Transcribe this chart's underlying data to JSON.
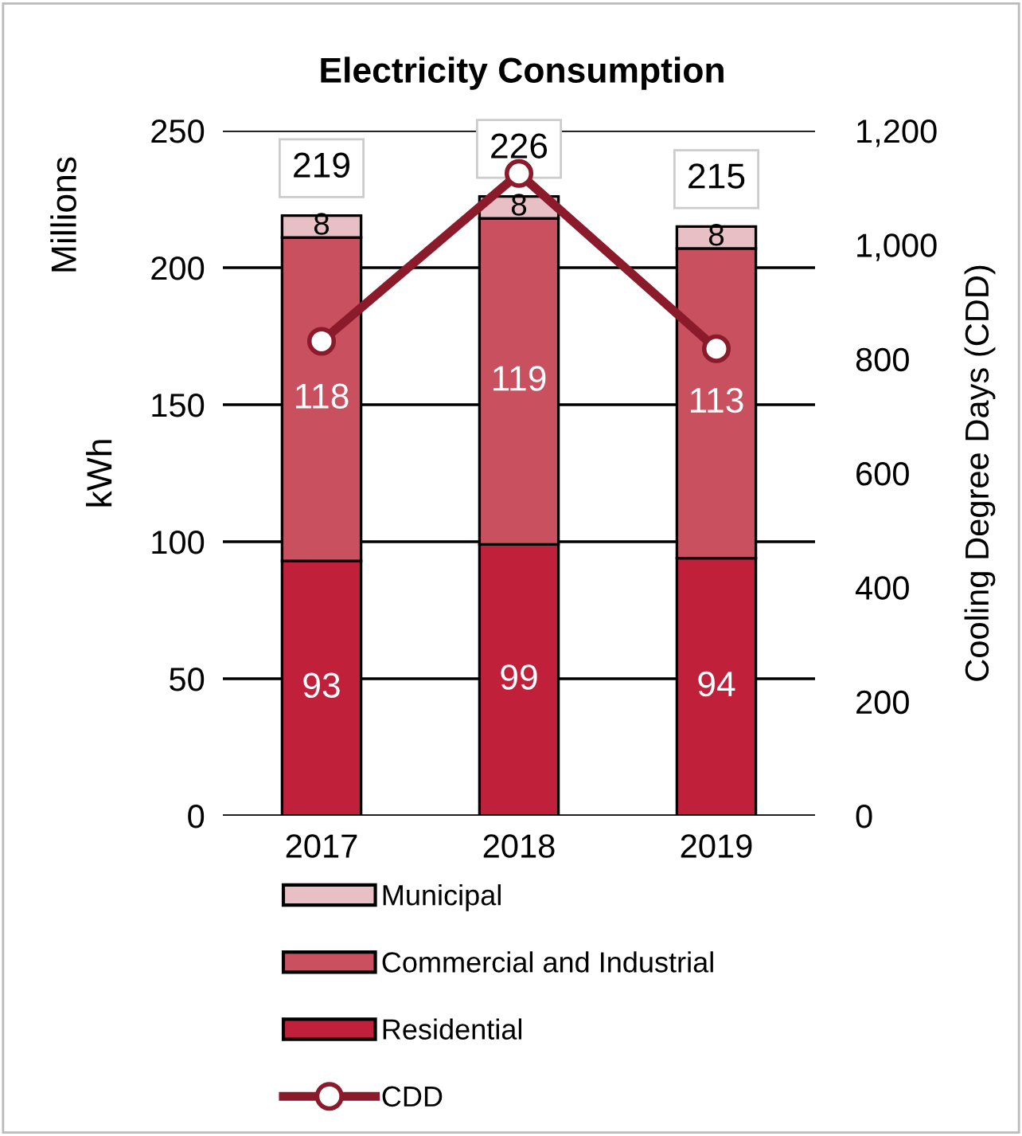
{
  "chart_data": {
    "type": "bar",
    "title": "Electricity Consumption",
    "ylabel": "kWh",
    "y2label": "Cooling Degree Days (CDD)",
    "annotations": [
      "Millions"
    ],
    "categories": [
      "2017",
      "2018",
      "2019"
    ],
    "stacked": true,
    "totals": [
      "219",
      "226",
      "215"
    ],
    "series": [
      {
        "name": "Residential",
        "color": "#c0203a",
        "values": [
          93,
          99,
          94
        ],
        "value_labels": [
          "93",
          "99",
          "94"
        ]
      },
      {
        "name": "Commercial and Industrial",
        "color": "#c9505e",
        "values": [
          118,
          119,
          113
        ],
        "value_labels": [
          "118",
          "119",
          "113"
        ]
      },
      {
        "name": "Municipal",
        "color": "#e8bfc4",
        "values": [
          8,
          8,
          8
        ],
        "value_labels": [
          "8",
          "8",
          "8"
        ]
      },
      {
        "name": "CDD",
        "type": "line",
        "axis": "y2",
        "color": "#8b1a2b",
        "marker": "circle",
        "values": [
          831,
          1125,
          818
        ]
      }
    ],
    "ylim": [
      0,
      250
    ],
    "yticks": [
      0,
      50,
      100,
      150,
      200,
      250
    ],
    "y2lim": [
      0,
      1200
    ],
    "y2ticks": [
      0,
      {
        "value": 200,
        "label": "200"
      },
      {
        "value": 400,
        "label": "400"
      },
      {
        "value": 600,
        "label": "600"
      },
      {
        "value": 800,
        "label": "800"
      },
      {
        "value": 1000,
        "label": "1,000"
      },
      {
        "value": 1200,
        "label": "1,200"
      }
    ],
    "grid": "y",
    "legend": "bottom"
  }
}
